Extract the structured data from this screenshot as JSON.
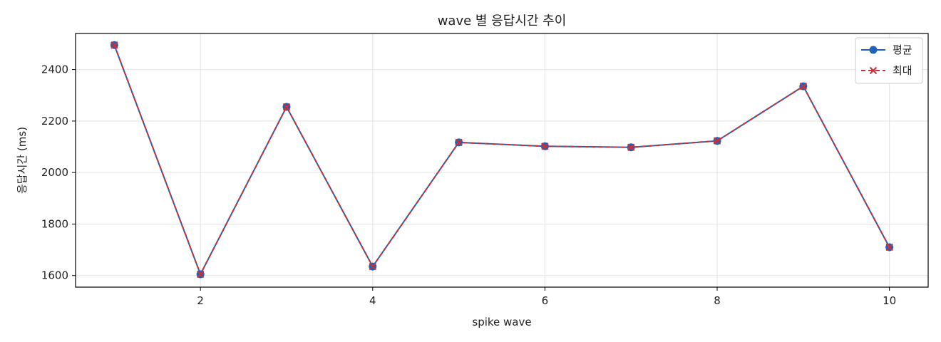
{
  "chart_data": {
    "type": "line",
    "title": "wave 별 응답시간 추이",
    "xlabel": "spike wave",
    "ylabel": "응답시간 (ms)",
    "x": [
      1,
      2,
      3,
      4,
      5,
      6,
      7,
      8,
      9,
      10
    ],
    "xlim": [
      0.55,
      10.45
    ],
    "ylim": [
      1555,
      2540
    ],
    "xticks": [
      2,
      4,
      6,
      8,
      10
    ],
    "yticks": [
      1600,
      1800,
      2000,
      2200,
      2400
    ],
    "grid": true,
    "legend_position": "top-right",
    "series": [
      {
        "name": "평균",
        "marker": "circle",
        "linestyle": "solid",
        "color": "#1f63b8",
        "values": [
          2495,
          1605,
          2255,
          1635,
          2117,
          2102,
          2098,
          2123,
          2335,
          1710
        ]
      },
      {
        "name": "최대",
        "marker": "x",
        "linestyle": "dashed",
        "color": "#c8313a",
        "values": [
          2495,
          1605,
          2255,
          1635,
          2117,
          2102,
          2098,
          2123,
          2335,
          1710
        ]
      }
    ]
  }
}
